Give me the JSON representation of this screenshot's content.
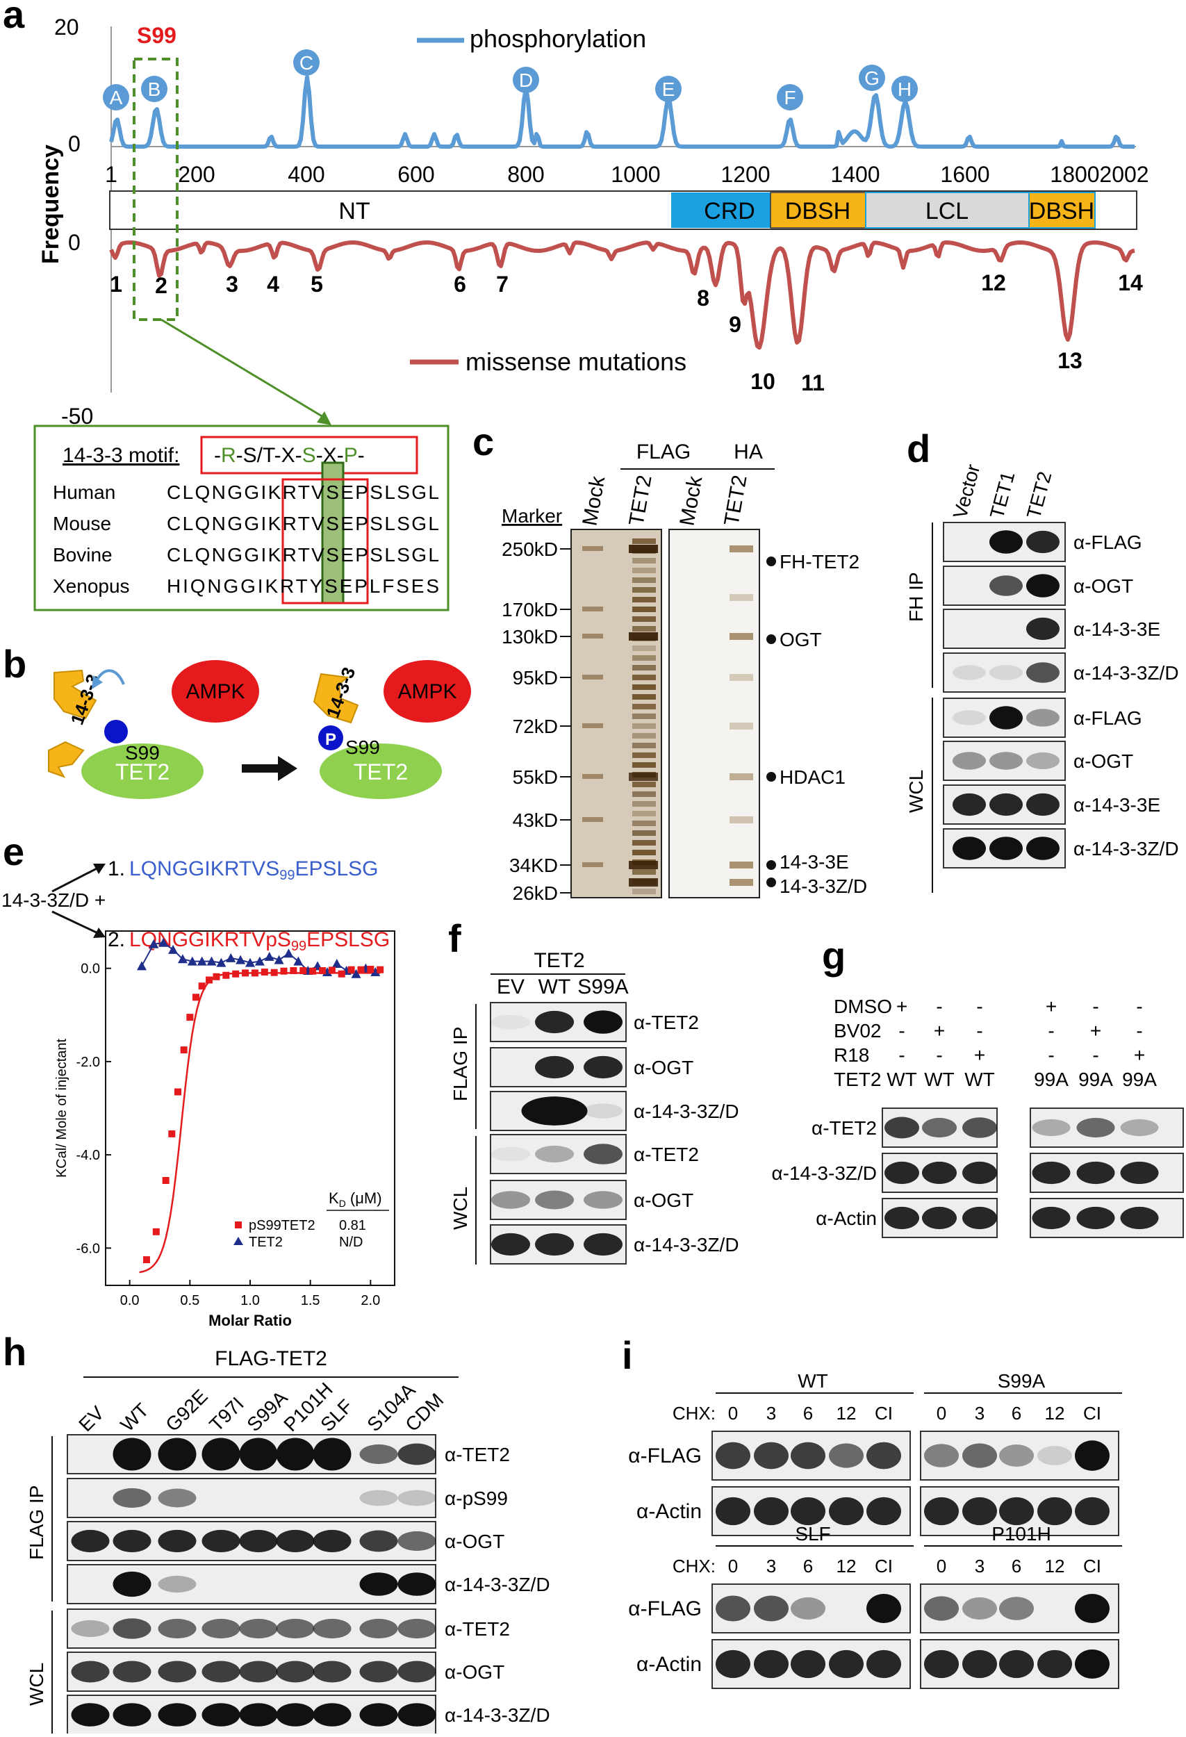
{
  "panel_labels": {
    "a": "a",
    "b": "b",
    "c": "c",
    "d": "d",
    "e": "e",
    "f": "f",
    "g": "g",
    "h": "h",
    "i": "i"
  },
  "a": {
    "y_axis_label": "Frequency",
    "ticks_top": [
      "20",
      "0"
    ],
    "ticks_bottom": [
      "0",
      "-50"
    ],
    "x_ticks": [
      "1",
      "200",
      "400",
      "600",
      "800",
      "1000",
      "1200",
      "1400",
      "1600",
      "1800",
      "2002"
    ],
    "s99_label": "S99",
    "legend_phos": "phosphorylation",
    "legend_mut": "missense mutations",
    "phos_peaks": [
      "A",
      "B",
      "C",
      "D",
      "E",
      "F",
      "G",
      "H"
    ],
    "mut_peaks": [
      "1",
      "2",
      "3",
      "4",
      "5",
      "6",
      "7",
      "8",
      "9",
      "10",
      "11",
      "12",
      "13",
      "14"
    ],
    "domains": [
      "NT",
      "CRD",
      "DBSH",
      "LCL",
      "DBSH"
    ],
    "colors": {
      "phos": "#5b9bd5",
      "mut": "#c0504d",
      "crd": "#1ba1e2",
      "dbsh": "#f7b419",
      "lcl": "#d9d9d9",
      "green": "#4e8f2a",
      "red": "#e41a1c"
    },
    "motif": {
      "title": "14-3-3 motif:",
      "pattern": "-R-S/T-X-S-X-P-",
      "rows": [
        {
          "species": "Human",
          "seq": "CLQNGGIKRTVSEPSLSGL"
        },
        {
          "species": "Mouse",
          "seq": "CLQNGGIKRTVSEPSLSGL"
        },
        {
          "species": "Bovine",
          "seq": "CLQNGGIKRTVSEPSLSGL"
        },
        {
          "species": "Xenopus",
          "seq": "HIQNGGIKRTYSEPLFSES"
        }
      ]
    }
  },
  "b": {
    "protein_1433": "14-3-3",
    "ampk": "AMPK",
    "site": "S99",
    "tet2": "TET2",
    "p": "P"
  },
  "c": {
    "groups": [
      "FLAG",
      "HA"
    ],
    "lanes": [
      "Mock",
      "TET2",
      "Mock",
      "TET2"
    ],
    "marker_title": "Marker",
    "markers": [
      "250kD",
      "170kD",
      "130kD",
      "95kD",
      "72kD",
      "55kD",
      "43kD",
      "34KD",
      "26kD"
    ],
    "bands": [
      "FH-TET2",
      "OGT",
      "HDAC1",
      "14-3-3E",
      "14-3-3Z/D"
    ]
  },
  "d": {
    "lanes": [
      "Vector",
      "TET1",
      "TET2"
    ],
    "ip_label": "FH IP",
    "wcl_label": "WCL",
    "rows": [
      "α-FLAG",
      "α-OGT",
      "α-14-3-3E",
      "α-14-3-3Z/D",
      "α-FLAG",
      "α-OGT",
      "α-14-3-3E",
      "α-14-3-3Z/D"
    ]
  },
  "e": {
    "prefix": "14-3-3Z/D +",
    "peptide1_num": "1.",
    "peptide1_a": "LQNGGIKRTVS",
    "peptide1_sub": "99",
    "peptide1_b": "EPSLSG",
    "peptide2_num": "2.",
    "peptide2_a": "LQNGGIKRTVpS",
    "peptide2_sub": "99",
    "peptide2_b": "EPSLSG",
    "ylabel": "KCal/ Mole of injectant",
    "xlabel": "Molar Ratio",
    "kd_header": "K",
    "kd_sub": "D",
    "kd_unit": " (μM)",
    "legend": [
      {
        "name": "pS99TET2",
        "value": "0.81"
      },
      {
        "name": "TET2",
        "value": "N/D"
      }
    ],
    "chart_data": {
      "type": "scatter",
      "xlabel": "Molar Ratio",
      "ylabel": "KCal/ Mole of injectant",
      "xlim": [
        -0.2,
        2.2
      ],
      "ylim": [
        -6.8,
        0.8
      ],
      "xticks": [
        "0.0",
        "0.5",
        "1.0",
        "1.5",
        "2.0"
      ],
      "yticks": [
        "0.0",
        "-2.0",
        "-4.0",
        "-6.0"
      ],
      "series": [
        {
          "name": "pS99TET2",
          "color": "#e41a1c",
          "x": [
            0.14,
            0.22,
            0.3,
            0.35,
            0.4,
            0.45,
            0.5,
            0.55,
            0.6,
            0.66,
            0.72,
            0.8,
            0.88,
            0.96,
            1.04,
            1.12,
            1.2,
            1.28,
            1.36,
            1.44,
            1.52,
            1.6,
            1.68,
            1.76,
            1.84,
            1.92,
            2.0,
            2.08
          ],
          "y": [
            -6.25,
            -5.65,
            -4.55,
            -3.55,
            -2.65,
            -1.75,
            -1.05,
            -0.62,
            -0.38,
            -0.25,
            -0.18,
            -0.15,
            -0.12,
            -0.1,
            -0.1,
            -0.08,
            -0.09,
            -0.06,
            -0.05,
            -0.05,
            -0.06,
            -0.05,
            -0.04,
            -0.12,
            -0.03,
            -0.03,
            -0.02,
            -0.03
          ]
        },
        {
          "name": "TET2",
          "color": "#1f2e8a",
          "x": [
            0.1,
            0.2,
            0.28,
            0.36,
            0.44,
            0.52,
            0.6,
            0.68,
            0.76,
            0.84,
            0.92,
            1.0,
            1.08,
            1.16,
            1.24,
            1.32,
            1.4,
            1.48,
            1.56,
            1.64,
            1.72,
            1.8,
            1.88,
            1.96,
            2.04
          ],
          "y": [
            0.05,
            0.52,
            0.55,
            0.4,
            0.2,
            0.15,
            0.15,
            0.15,
            0.12,
            0.22,
            0.18,
            0.12,
            0.15,
            0.25,
            0.18,
            0.32,
            0.15,
            -0.05,
            0.05,
            -0.08,
            0.1,
            -0.05,
            -0.12,
            0.0,
            -0.08
          ]
        }
      ]
    }
  },
  "f": {
    "group": "TET2",
    "lanes": [
      "EV",
      "WT",
      "S99A"
    ],
    "ip_label": "FLAG IP",
    "wcl_label": "WCL",
    "rows": [
      "α-TET2",
      "α-OGT",
      "α-14-3-3Z/D",
      "α-TET2",
      "α-OGT",
      "α-14-3-3Z/D"
    ]
  },
  "g": {
    "treat_rows": [
      {
        "name": "DMSO",
        "vals": [
          "+",
          "-",
          "-",
          "+",
          "-",
          "-"
        ]
      },
      {
        "name": "BV02",
        "vals": [
          "-",
          "+",
          "-",
          "-",
          "+",
          "-"
        ]
      },
      {
        "name": "R18",
        "vals": [
          "-",
          "-",
          "+",
          "-",
          "-",
          "+"
        ]
      },
      {
        "name": "TET2",
        "vals": [
          "WT",
          "WT",
          "WT",
          "99A",
          "99A",
          "99A"
        ]
      }
    ],
    "rows": [
      "α-TET2",
      "α-14-3-3Z/D",
      "α-Actin"
    ]
  },
  "h": {
    "group": "FLAG-TET2",
    "lanes": [
      "EV",
      "WT",
      "G92E",
      "T97I",
      "S99A",
      "P101H",
      "SLF",
      "S104A",
      "CDM"
    ],
    "ip_label": "FLAG IP",
    "wcl_label": "WCL",
    "rows": [
      "α-TET2",
      "α-pS99",
      "α-OGT",
      "α-14-3-3Z/D",
      "α-TET2",
      "α-OGT",
      "α-14-3-3Z/D"
    ]
  },
  "i": {
    "chx_label": "CHX:",
    "time_points": [
      "0",
      "3",
      "6",
      "12",
      "CI"
    ],
    "blocks": [
      "WT",
      "S99A",
      "SLF",
      "P101H"
    ],
    "rows": [
      "α-FLAG",
      "α-Actin"
    ]
  }
}
